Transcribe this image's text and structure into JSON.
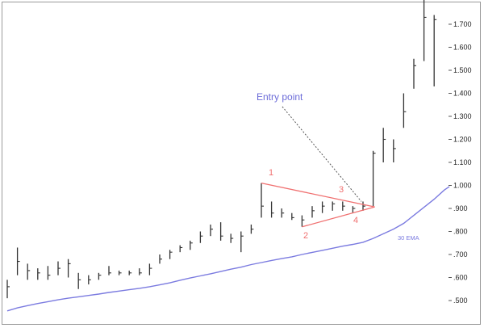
{
  "chart_data": {
    "type": "ohlc",
    "title": "",
    "xlabel": "",
    "ylabel": "",
    "y_axis_position": "right",
    "ylim": [
      0.44,
      1.83
    ],
    "y_ticks": [
      0.5,
      0.6,
      0.7,
      0.8,
      0.9,
      1.0,
      1.1,
      1.2,
      1.3,
      1.4,
      1.5,
      1.6,
      1.7
    ],
    "y_tick_labels": [
      ".500",
      ".600",
      ".700",
      ".800",
      ".900",
      "1.000",
      "1.100",
      "1.200",
      "1.300",
      "1.400",
      "1.500",
      "1.600",
      "1.700"
    ],
    "grid": false,
    "colors": {
      "bars": "#333333",
      "ema": "#7b7be0",
      "pattern": "#f07070",
      "entry": "#6b6bd8",
      "guide": "#555555"
    },
    "bars": [
      {
        "index": 0,
        "high": 0.59,
        "low": 0.51,
        "close": 0.56
      },
      {
        "index": 2,
        "high": 0.73,
        "low": 0.61,
        "close": 0.67
      },
      {
        "index": 4,
        "high": 0.66,
        "low": 0.59,
        "close": 0.63
      },
      {
        "index": 6,
        "high": 0.64,
        "low": 0.59,
        "close": 0.62
      },
      {
        "index": 8,
        "high": 0.65,
        "low": 0.59,
        "close": 0.61
      },
      {
        "index": 10,
        "high": 0.67,
        "low": 0.61,
        "close": 0.64
      },
      {
        "index": 12,
        "high": 0.68,
        "low": 0.6,
        "close": 0.66
      },
      {
        "index": 14,
        "high": 0.62,
        "low": 0.55,
        "close": 0.59
      },
      {
        "index": 16,
        "high": 0.61,
        "low": 0.57,
        "close": 0.59
      },
      {
        "index": 18,
        "high": 0.62,
        "low": 0.59,
        "close": 0.61
      },
      {
        "index": 20,
        "high": 0.65,
        "low": 0.61,
        "close": 0.62
      },
      {
        "index": 22,
        "high": 0.63,
        "low": 0.61,
        "close": 0.62
      },
      {
        "index": 24,
        "high": 0.63,
        "low": 0.61,
        "close": 0.62
      },
      {
        "index": 26,
        "high": 0.64,
        "low": 0.61,
        "close": 0.62
      },
      {
        "index": 28,
        "high": 0.66,
        "low": 0.61,
        "close": 0.64
      },
      {
        "index": 30,
        "high": 0.7,
        "low": 0.66,
        "close": 0.68
      },
      {
        "index": 32,
        "high": 0.72,
        "low": 0.68,
        "close": 0.71
      },
      {
        "index": 34,
        "high": 0.74,
        "low": 0.71,
        "close": 0.73
      },
      {
        "index": 36,
        "high": 0.76,
        "low": 0.72,
        "close": 0.75
      },
      {
        "index": 38,
        "high": 0.8,
        "low": 0.75,
        "close": 0.78
      },
      {
        "index": 40,
        "high": 0.83,
        "low": 0.78,
        "close": 0.81
      },
      {
        "index": 42,
        "high": 0.84,
        "low": 0.76,
        "close": 0.78
      },
      {
        "index": 44,
        "high": 0.79,
        "low": 0.75,
        "close": 0.77
      },
      {
        "index": 46,
        "high": 0.8,
        "low": 0.71,
        "close": 0.78
      },
      {
        "index": 48,
        "high": 0.83,
        "low": 0.79,
        "close": 0.81
      },
      {
        "index": 50,
        "high": 1.01,
        "low": 0.86,
        "close": 0.91
      },
      {
        "index": 52,
        "high": 0.93,
        "low": 0.86,
        "close": 0.88
      },
      {
        "index": 54,
        "high": 0.9,
        "low": 0.86,
        "close": 0.88
      },
      {
        "index": 56,
        "high": 0.88,
        "low": 0.85,
        "close": 0.86
      },
      {
        "index": 58,
        "high": 0.87,
        "low": 0.82,
        "close": 0.85
      },
      {
        "index": 60,
        "high": 0.91,
        "low": 0.86,
        "close": 0.89
      },
      {
        "index": 62,
        "high": 0.93,
        "low": 0.88,
        "close": 0.91
      },
      {
        "index": 64,
        "high": 0.93,
        "low": 0.89,
        "close": 0.92
      },
      {
        "index": 66,
        "high": 0.93,
        "low": 0.89,
        "close": 0.91
      },
      {
        "index": 68,
        "high": 0.91,
        "low": 0.88,
        "close": 0.9
      },
      {
        "index": 70,
        "high": 0.93,
        "low": 0.89,
        "close": 0.91
      },
      {
        "index": 72,
        "high": 1.15,
        "low": 0.91,
        "close": 1.14
      },
      {
        "index": 74,
        "high": 1.25,
        "low": 1.1,
        "close": 1.2
      },
      {
        "index": 76,
        "high": 1.2,
        "low": 1.1,
        "close": 1.16
      },
      {
        "index": 78,
        "high": 1.4,
        "low": 1.25,
        "close": 1.32
      },
      {
        "index": 80,
        "high": 1.55,
        "low": 1.42,
        "close": 1.52
      },
      {
        "index": 82,
        "high": 1.82,
        "low": 1.54,
        "close": 1.73
      },
      {
        "index": 84,
        "high": 1.74,
        "low": 1.43,
        "close": 1.72
      }
    ],
    "series": [
      {
        "name": "30 EMA",
        "points": [
          [
            0,
            0.455
          ],
          [
            2,
            0.468
          ],
          [
            4,
            0.478
          ],
          [
            6,
            0.487
          ],
          [
            8,
            0.495
          ],
          [
            10,
            0.503
          ],
          [
            12,
            0.51
          ],
          [
            14,
            0.516
          ],
          [
            16,
            0.522
          ],
          [
            18,
            0.528
          ],
          [
            20,
            0.535
          ],
          [
            22,
            0.541
          ],
          [
            24,
            0.547
          ],
          [
            26,
            0.553
          ],
          [
            28,
            0.56
          ],
          [
            30,
            0.568
          ],
          [
            32,
            0.577
          ],
          [
            34,
            0.588
          ],
          [
            36,
            0.598
          ],
          [
            38,
            0.607
          ],
          [
            40,
            0.616
          ],
          [
            42,
            0.626
          ],
          [
            44,
            0.636
          ],
          [
            46,
            0.645
          ],
          [
            48,
            0.656
          ],
          [
            50,
            0.665
          ],
          [
            52,
            0.674
          ],
          [
            54,
            0.682
          ],
          [
            56,
            0.69
          ],
          [
            58,
            0.7
          ],
          [
            60,
            0.709
          ],
          [
            62,
            0.718
          ],
          [
            64,
            0.727
          ],
          [
            66,
            0.736
          ],
          [
            68,
            0.744
          ],
          [
            70,
            0.753
          ],
          [
            72,
            0.77
          ],
          [
            74,
            0.79
          ],
          [
            76,
            0.81
          ],
          [
            78,
            0.835
          ],
          [
            80,
            0.87
          ],
          [
            82,
            0.905
          ],
          [
            84,
            0.94
          ],
          [
            86,
            0.98
          ],
          [
            87,
            0.995
          ]
        ]
      }
    ],
    "pattern": {
      "point_labels": [
        "1",
        "2",
        "3",
        "4"
      ],
      "upper_line": [
        [
          50,
          1.01
        ],
        [
          72,
          0.91
        ]
      ],
      "lower_line": [
        [
          58,
          0.82
        ],
        [
          72,
          0.91
        ]
      ]
    },
    "annotations": {
      "entry_label": "Entry point",
      "entry_target": [
        70,
        0.93
      ],
      "ema_label": "30 EMA"
    }
  }
}
